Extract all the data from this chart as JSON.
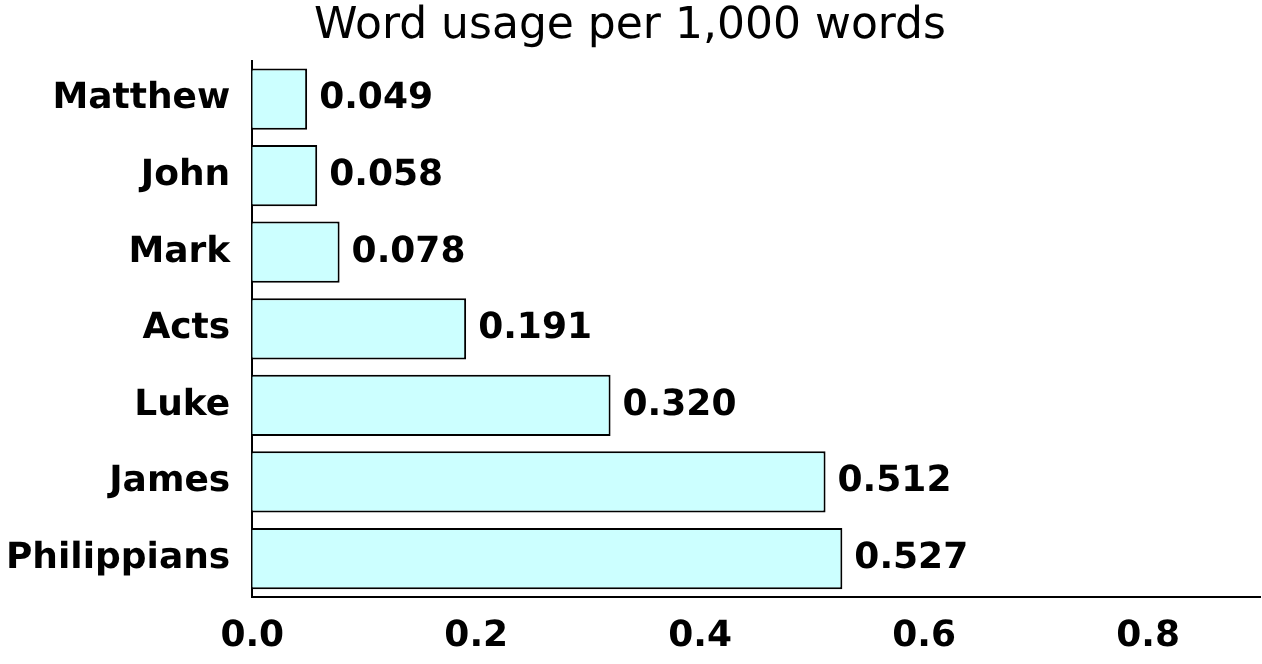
{
  "chart_data": {
    "type": "bar",
    "orientation": "horizontal",
    "title": "Word usage per 1,000 words",
    "categories": [
      "Matthew",
      "John",
      "Mark",
      "Acts",
      "Luke",
      "James",
      "Philippians"
    ],
    "values": [
      0.049,
      0.058,
      0.078,
      0.191,
      0.32,
      0.512,
      0.527
    ],
    "value_labels": [
      "0.049",
      "0.058",
      "0.078",
      "0.191",
      "0.320",
      "0.512",
      "0.527"
    ],
    "color": "#ccffff",
    "xlim": [
      0,
      0.9
    ],
    "xticks": [
      {
        "value": 0,
        "label": "0.0"
      },
      {
        "value": 0.2,
        "label": "0.2"
      },
      {
        "value": 0.4,
        "label": "0.4"
      },
      {
        "value": 0.6,
        "label": "0.6"
      },
      {
        "value": 0.8,
        "label": "0.8"
      }
    ],
    "grid": false,
    "legend": false
  }
}
